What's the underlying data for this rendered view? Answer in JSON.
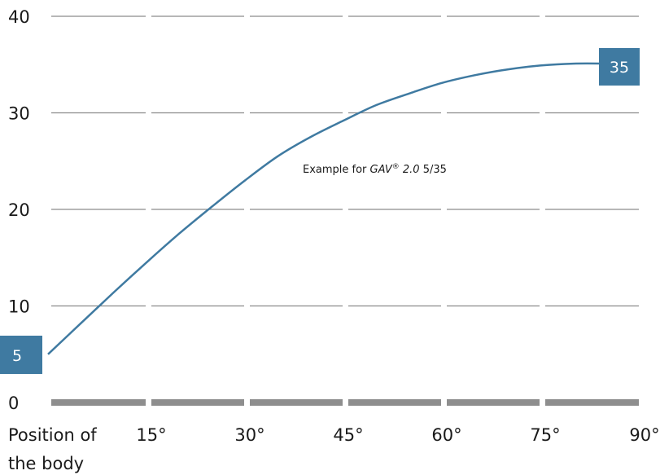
{
  "chart_data": {
    "type": "line",
    "x_axis": {
      "first_label": [
        "Position of",
        "the body"
      ],
      "tick_labels": [
        "15°",
        "30°",
        "45°",
        "60°",
        "75°",
        "90°"
      ]
    },
    "y_axis": {
      "ticks": [
        0,
        10,
        20,
        30,
        40
      ],
      "ylim": [
        0,
        40
      ]
    },
    "grid": true,
    "series": [
      {
        "x": [
          0,
          5,
          10,
          15,
          20,
          25,
          30,
          35,
          40,
          45,
          50,
          55,
          60,
          65,
          70,
          75,
          80,
          85,
          90
        ],
        "values": [
          5,
          8.2,
          11.4,
          14.5,
          17.5,
          20.3,
          23,
          25.5,
          27.5,
          29.2,
          30.8,
          32,
          33.1,
          33.9,
          34.5,
          34.9,
          35.1,
          35.1,
          35
        ],
        "color": "#3f7aa1"
      }
    ],
    "point_labels": {
      "start": "5",
      "end": "35"
    },
    "annotation": {
      "prefix": "Example for ",
      "product": "GAV",
      "reg": "®",
      "version": " 2.0",
      "setting": " 5/35"
    }
  }
}
